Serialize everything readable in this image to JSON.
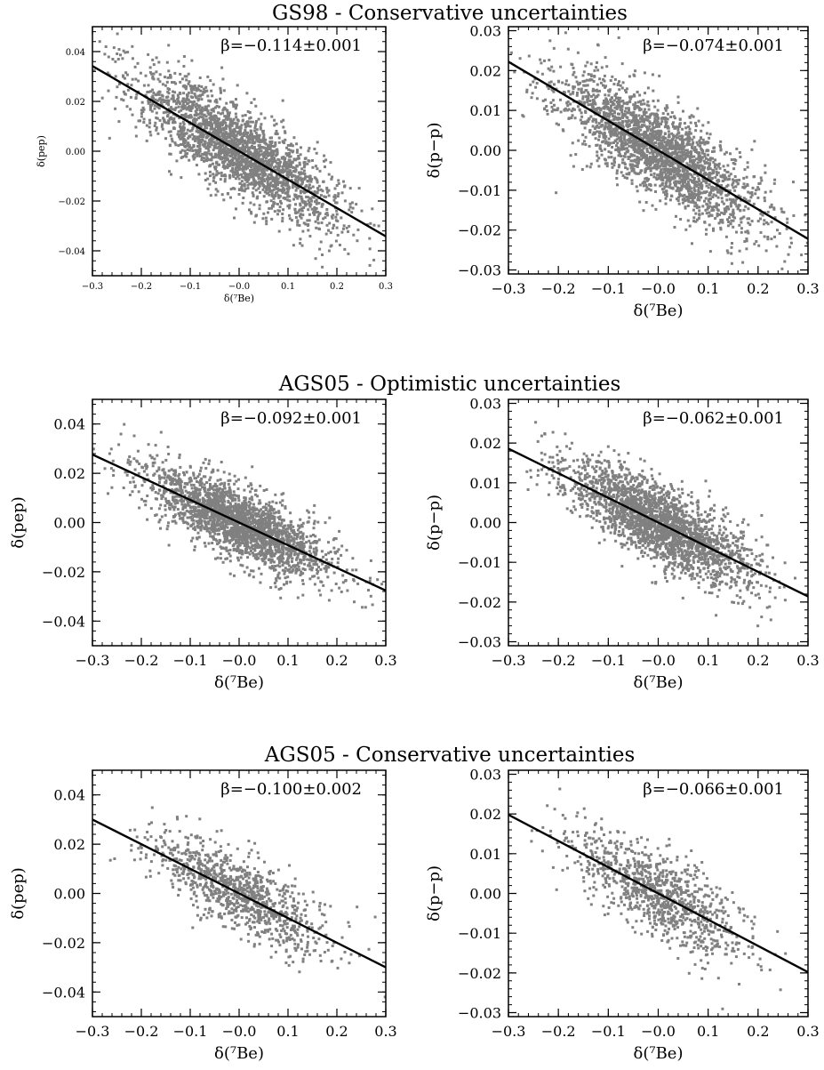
{
  "page": {
    "background": "#ffffff"
  },
  "chart_data": [
    {
      "type": "scatter",
      "group_title": "GS98 - Conservative uncertainties",
      "xlabel": "δ(⁷Be)",
      "ylabel": "δ(pep)",
      "xlim": [
        -0.3,
        0.3
      ],
      "ylim": [
        -0.05,
        0.05
      ],
      "xticks": [
        -0.3,
        -0.2,
        -0.1,
        0.0,
        0.1,
        0.2,
        0.3
      ],
      "xtick_labels": [
        "−0.3",
        "−0.2",
        "−0.1",
        "−0.0",
        "0.1",
        "0.2",
        "0.3"
      ],
      "yticks": [
        -0.04,
        -0.02,
        0.0,
        0.02,
        0.04
      ],
      "ytick_labels": [
        "−0.04",
        "−0.02",
        "0.00",
        "0.02",
        "0.04"
      ],
      "annotation": "β=−0.114±0.001",
      "fit": {
        "slope": -0.114,
        "intercept": 0.0
      },
      "scatter": {
        "n": 2400,
        "x_sd": 0.1,
        "resid_sd": 0.0088
      },
      "point_color": "#808080",
      "line_color": "#000000",
      "grid": false
    },
    {
      "type": "scatter",
      "xlabel": "δ(⁷Be)",
      "ylabel": "δ(p−p)",
      "xlim": [
        -0.3,
        0.3
      ],
      "ylim": [
        -0.031,
        0.031
      ],
      "xticks": [
        -0.3,
        -0.2,
        -0.1,
        0.0,
        0.1,
        0.2,
        0.3
      ],
      "xtick_labels": [
        "−0.3",
        "−0.2",
        "−0.1",
        "−0.0",
        "0.1",
        "0.2",
        "0.3"
      ],
      "yticks": [
        -0.03,
        -0.02,
        -0.01,
        0.0,
        0.01,
        0.02,
        0.03
      ],
      "ytick_labels": [
        "−0.03",
        "−0.02",
        "−0.01",
        "0.00",
        "0.01",
        "0.02",
        "0.03"
      ],
      "annotation": "β=−0.074±0.001",
      "fit": {
        "slope": -0.074,
        "intercept": 0.0
      },
      "scatter": {
        "n": 2400,
        "x_sd": 0.1,
        "resid_sd": 0.0058
      },
      "point_color": "#808080",
      "line_color": "#000000",
      "grid": false
    },
    {
      "type": "scatter",
      "group_title": "AGS05 - Optimistic uncertainties",
      "xlabel": "δ(⁷Be)",
      "ylabel": "δ(pep)",
      "xlim": [
        -0.3,
        0.3
      ],
      "ylim": [
        -0.05,
        0.05
      ],
      "xticks": [
        -0.3,
        -0.2,
        -0.1,
        0.0,
        0.1,
        0.2,
        0.3
      ],
      "xtick_labels": [
        "−0.3",
        "−0.2",
        "−0.1",
        "−0.0",
        "0.1",
        "0.2",
        "0.3"
      ],
      "yticks": [
        -0.04,
        -0.02,
        0.0,
        0.02,
        0.04
      ],
      "ytick_labels": [
        "−0.04",
        "−0.02",
        "0.00",
        "0.02",
        "0.04"
      ],
      "annotation": "β=−0.092±0.001",
      "fit": {
        "slope": -0.092,
        "intercept": 0.0
      },
      "scatter": {
        "n": 2400,
        "x_sd": 0.09,
        "resid_sd": 0.007
      },
      "point_color": "#808080",
      "line_color": "#000000",
      "grid": false
    },
    {
      "type": "scatter",
      "xlabel": "δ(⁷Be)",
      "ylabel": "δ(p−p)",
      "xlim": [
        -0.3,
        0.3
      ],
      "ylim": [
        -0.031,
        0.031
      ],
      "xticks": [
        -0.3,
        -0.2,
        -0.1,
        0.0,
        0.1,
        0.2,
        0.3
      ],
      "xtick_labels": [
        "−0.3",
        "−0.2",
        "−0.1",
        "−0.0",
        "0.1",
        "0.2",
        "0.3"
      ],
      "yticks": [
        -0.03,
        -0.02,
        -0.01,
        0.0,
        0.01,
        0.02,
        0.03
      ],
      "ytick_labels": [
        "−0.03",
        "−0.02",
        "−0.01",
        "0.00",
        "0.01",
        "0.02",
        "0.03"
      ],
      "annotation": "β=−0.062±0.001",
      "fit": {
        "slope": -0.062,
        "intercept": 0.0
      },
      "scatter": {
        "n": 2400,
        "x_sd": 0.09,
        "resid_sd": 0.0048
      },
      "point_color": "#808080",
      "line_color": "#000000",
      "grid": false
    },
    {
      "type": "scatter",
      "group_title": "AGS05 - Conservative uncertainties",
      "xlabel": "δ(⁷Be)",
      "ylabel": "δ(pep)",
      "xlim": [
        -0.3,
        0.3
      ],
      "ylim": [
        -0.05,
        0.05
      ],
      "xticks": [
        -0.3,
        -0.2,
        -0.1,
        0.0,
        0.1,
        0.2,
        0.3
      ],
      "xtick_labels": [
        "−0.3",
        "−0.2",
        "−0.1",
        "−0.0",
        "0.1",
        "0.2",
        "0.3"
      ],
      "yticks": [
        -0.04,
        -0.02,
        0.0,
        0.02,
        0.04
      ],
      "ytick_labels": [
        "−0.04",
        "−0.02",
        "0.00",
        "0.02",
        "0.04"
      ],
      "annotation": "β=−0.100±0.002",
      "fit": {
        "slope": -0.1,
        "intercept": 0.0
      },
      "scatter": {
        "n": 1000,
        "x_sd": 0.09,
        "resid_sd": 0.0078
      },
      "point_color": "#808080",
      "line_color": "#000000",
      "grid": false
    },
    {
      "type": "scatter",
      "xlabel": "δ(⁷Be)",
      "ylabel": "δ(p−p)",
      "xlim": [
        -0.3,
        0.3
      ],
      "ylim": [
        -0.031,
        0.031
      ],
      "xticks": [
        -0.3,
        -0.2,
        -0.1,
        0.0,
        0.1,
        0.2,
        0.3
      ],
      "xtick_labels": [
        "−0.3",
        "−0.2",
        "−0.1",
        "−0.0",
        "0.1",
        "0.2",
        "0.3"
      ],
      "yticks": [
        -0.03,
        -0.02,
        -0.01,
        0.0,
        0.01,
        0.02,
        0.03
      ],
      "ytick_labels": [
        "−0.03",
        "−0.02",
        "−0.01",
        "0.00",
        "0.01",
        "0.02",
        "0.03"
      ],
      "annotation": "β=−0.066±0.001",
      "fit": {
        "slope": -0.066,
        "intercept": 0.0
      },
      "scatter": {
        "n": 1000,
        "x_sd": 0.09,
        "resid_sd": 0.0052
      },
      "point_color": "#808080",
      "line_color": "#000000",
      "grid": false
    }
  ]
}
